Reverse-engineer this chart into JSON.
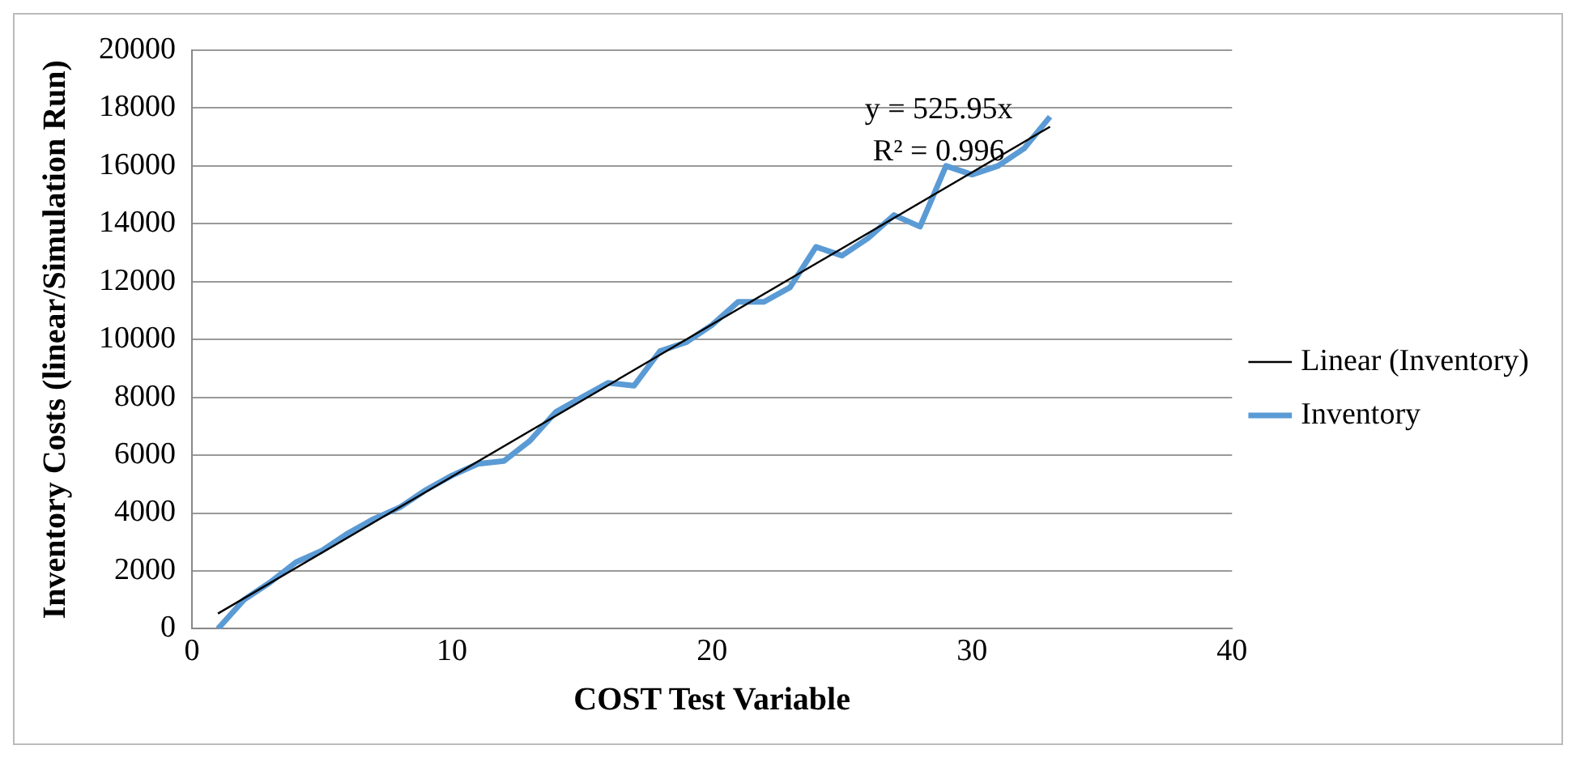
{
  "chart_data": {
    "type": "line",
    "xlabel": "COST Test Variable",
    "ylabel": "Inventory Costs (linear/Simulation Run)",
    "x": [
      1,
      2,
      3,
      4,
      5,
      6,
      7,
      8,
      9,
      10,
      11,
      12,
      13,
      14,
      15,
      16,
      17,
      18,
      19,
      20,
      21,
      22,
      23,
      24,
      25,
      26,
      27,
      28,
      29,
      30,
      31,
      32,
      33
    ],
    "series": [
      {
        "name": "Inventory",
        "color": "#5b9bd5",
        "values": [
          0,
          1000,
          1600,
          2300,
          2700,
          3300,
          3800,
          4200,
          4800,
          5300,
          5700,
          5800,
          6500,
          7500,
          8000,
          8500,
          8400,
          9600,
          9900,
          10500,
          11300,
          11300,
          11800,
          13200,
          12900,
          13500,
          14300,
          13900,
          16000,
          15700,
          16000,
          16600,
          17700
        ]
      },
      {
        "name": "Linear (Inventory)",
        "type": "line",
        "color": "#000000",
        "x": [
          1,
          33
        ],
        "values": [
          525.95,
          17356.35
        ]
      }
    ],
    "annotations": [
      "y = 525.95x",
      "R² = 0.996"
    ],
    "xlim": [
      0,
      40
    ],
    "xticks": [
      0,
      10,
      20,
      30,
      40
    ],
    "ylim": [
      0,
      20000
    ],
    "yticks": [
      0,
      2000,
      4000,
      6000,
      8000,
      10000,
      12000,
      14000,
      16000,
      18000,
      20000
    ],
    "grid": "y",
    "legend": "right",
    "marker": "none"
  }
}
